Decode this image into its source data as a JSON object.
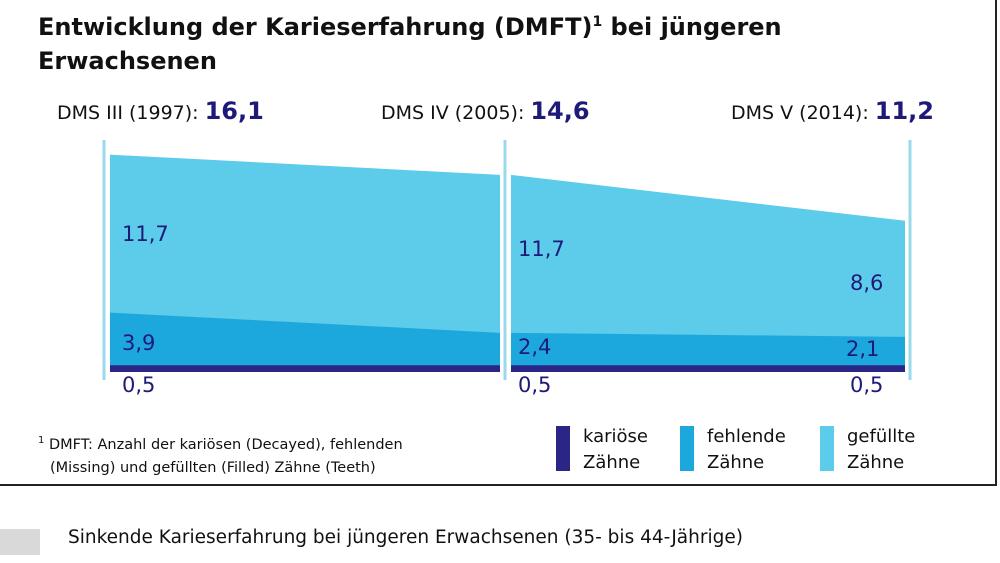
{
  "title": "Entwicklung der Karieserfahrung (DMFT)",
  "title_sup": "1",
  "title_suffix": " bei jüngeren Erwachsenen",
  "chart_data": {
    "type": "area",
    "categories": [
      "DMS III (1997):",
      "DMS IV (2005):",
      "DMS V (2014):"
    ],
    "totals": [
      "16,1",
      "14,6",
      "11,2"
    ],
    "series": [
      {
        "name": "kariöse Zähne",
        "values": [
          0.5,
          0.5,
          0.5
        ],
        "labels": [
          "0,5",
          "0,5",
          "0,5"
        ],
        "color": "#2b2585"
      },
      {
        "name": "fehlende Zähne",
        "values": [
          3.9,
          2.4,
          2.1
        ],
        "labels": [
          "3,9",
          "2,4",
          "2,1"
        ],
        "color": "#1ca8dd"
      },
      {
        "name": "gefüllte Zähne",
        "values": [
          11.7,
          11.7,
          8.6
        ],
        "labels": [
          "11,7",
          "11,7",
          "8,6"
        ],
        "color": "#5dcbea"
      }
    ],
    "colors": {
      "axis": "#9ad8ec",
      "value_text": "#1e1a78",
      "total_text": "#1e1a78"
    }
  },
  "footnote": {
    "marker": "1",
    "line1": "DMFT: Anzahl der kariösen (Decayed), fehlenden",
    "line2": "(Missing) und gefüllten (Filled) Zähne (Teeth)"
  },
  "legend": [
    {
      "line1": "kariöse",
      "line2": "Zähne",
      "color": "#2b2585"
    },
    {
      "line1": "fehlende",
      "line2": "Zähne",
      "color": "#1ca8dd"
    },
    {
      "line1": "gefüllte",
      "line2": "Zähne",
      "color": "#5dcbea"
    }
  ],
  "caption": "Sinkende Karieserfahrung bei jüngeren Erwachsenen (35- bis 44-Jährige)"
}
